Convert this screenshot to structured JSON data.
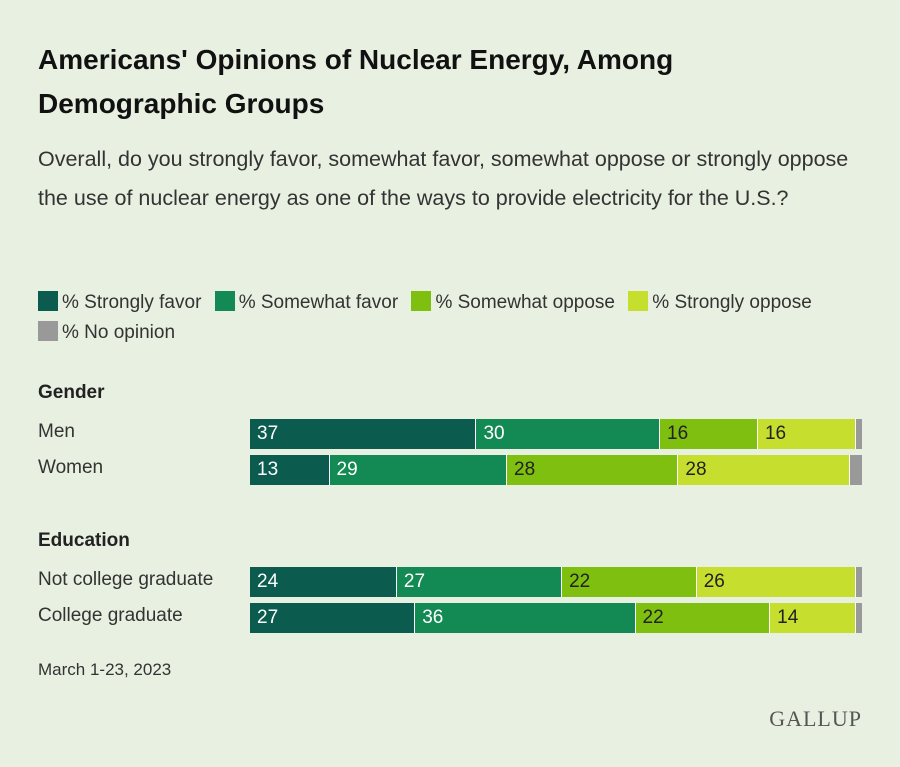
{
  "title": "Americans' Opinions of Nuclear Energy, Among Demographic Groups",
  "subtitle": "Overall, do you strongly favor, somewhat favor, somewhat oppose or strongly oppose the use of nuclear energy as one of the ways to provide electricity for the U.S.?",
  "footer": {
    "date": "March 1-23, 2023",
    "logo": "GALLUP"
  },
  "chart_data": {
    "type": "bar",
    "stacked": true,
    "orientation": "horizontal",
    "series": [
      {
        "name": "% Strongly favor",
        "color": "#0b5c4f",
        "text_color": "#ffffff"
      },
      {
        "name": "% Somewhat favor",
        "color": "#138a53",
        "text_color": "#ffffff"
      },
      {
        "name": "% Somewhat oppose",
        "color": "#7ebf10",
        "text_color": "#222222"
      },
      {
        "name": "% Strongly oppose",
        "color": "#c6de2e",
        "text_color": "#222222"
      },
      {
        "name": "% No opinion",
        "color": "#999999",
        "text_color": "#222222"
      }
    ],
    "groups": [
      {
        "name": "Gender",
        "rows": [
          {
            "category": "Men",
            "values": [
              37,
              30,
              16,
              16,
              1
            ]
          },
          {
            "category": "Women",
            "values": [
              13,
              29,
              28,
              28,
              2
            ]
          }
        ]
      },
      {
        "name": "Education",
        "rows": [
          {
            "category": "Not college graduate",
            "values": [
              24,
              27,
              22,
              26,
              1
            ]
          },
          {
            "category": "College graduate",
            "values": [
              27,
              36,
              22,
              14,
              1
            ]
          }
        ]
      }
    ],
    "legend_position": "top"
  }
}
